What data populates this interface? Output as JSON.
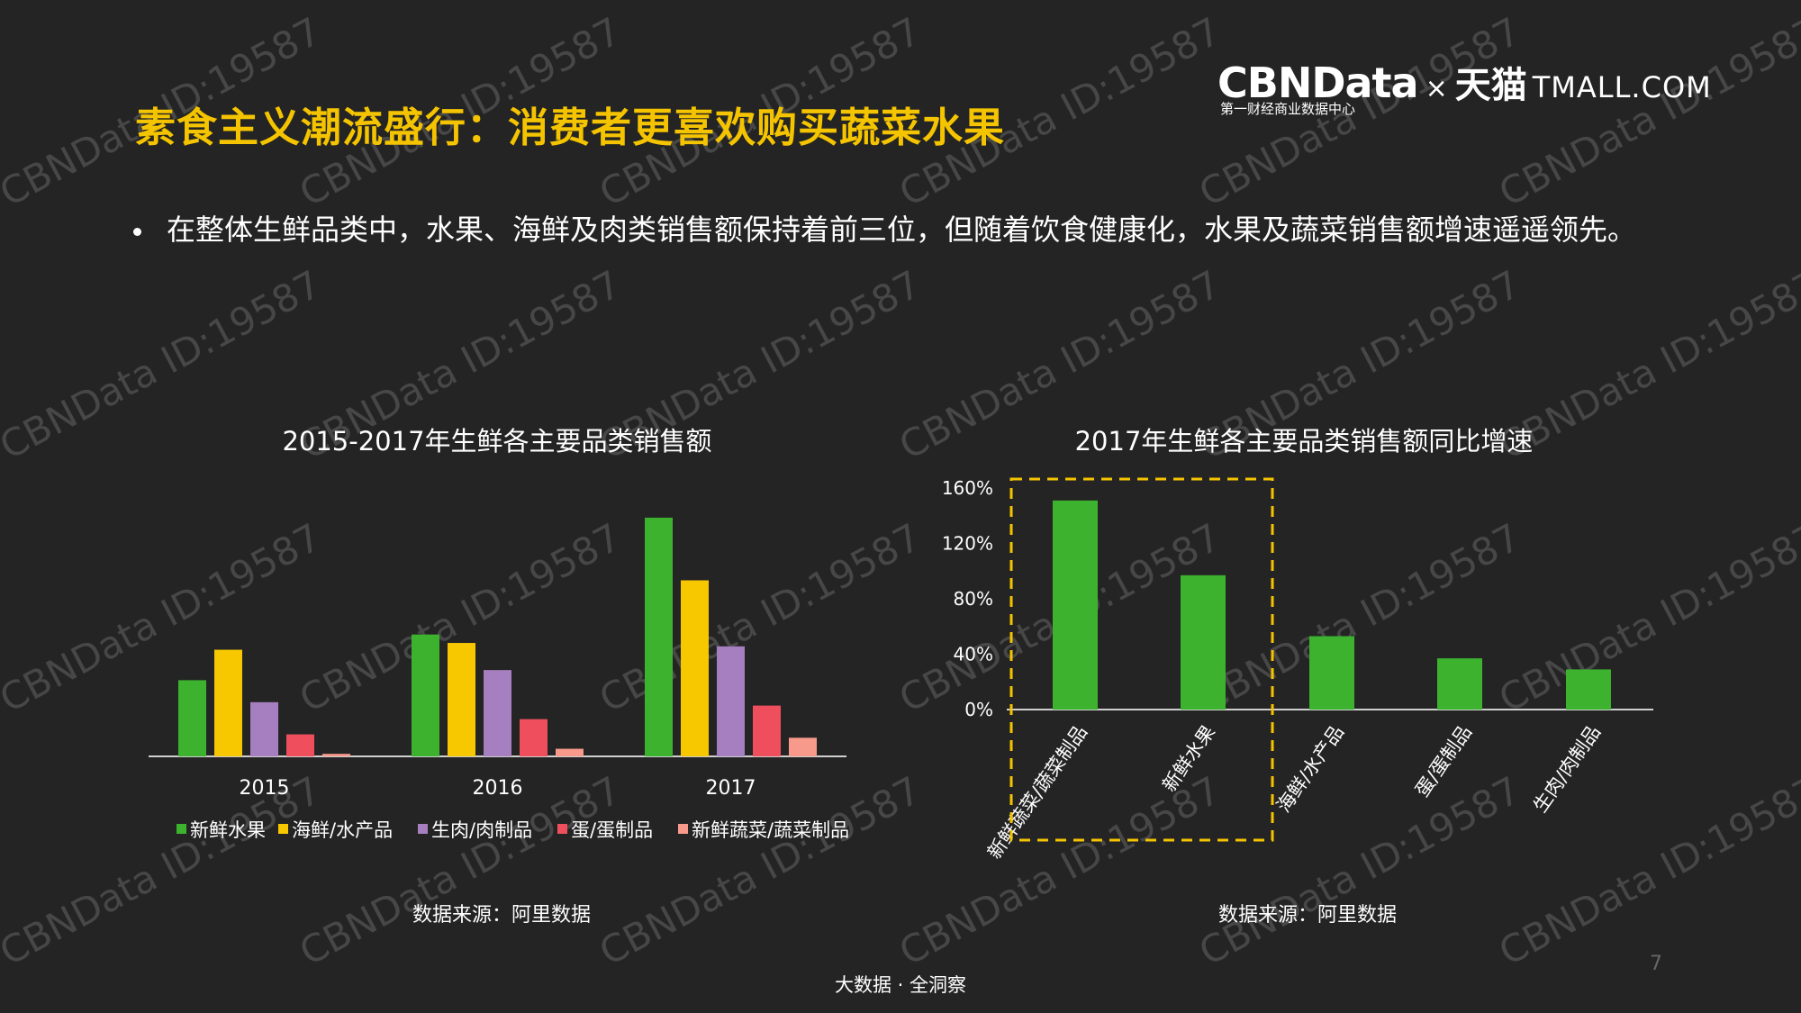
{
  "header": {
    "title": "素食主义潮流盛行：消费者更喜欢购买蔬菜水果",
    "logo_brand": "CBNData",
    "logo_times": "×",
    "logo_partner_cn": "天猫",
    "logo_partner_en": "TMALL.COM",
    "logo_subtitle": "第一财经商业数据中心"
  },
  "bullet_text": "在整体生鲜品类中，水果、海鲜及肉类销售额保持着前三位，但随着饮食健康化，水果及蔬菜销售额增速遥遥领先。",
  "watermark_text": "CBNData ID:19587",
  "colors": {
    "background": "#242424",
    "title": "#f5c400",
    "fruit": "#3cb22f",
    "seafood": "#f7c700",
    "meat": "#a67fc0",
    "egg": "#ef4f5d",
    "veg": "#f79a8c",
    "highlight_box": "#f5c400"
  },
  "chart_data": [
    {
      "type": "bar",
      "title": "2015-2017年生鲜各主要品类销售额",
      "categories": [
        "2015",
        "2016",
        "2017"
      ],
      "series": [
        {
          "name": "新鲜水果",
          "values": [
            45,
            72,
            141
          ]
        },
        {
          "name": "海鲜/水产品",
          "values": [
            63,
            67,
            104
          ]
        },
        {
          "name": "生肉/肉制品",
          "values": [
            32,
            51,
            65
          ]
        },
        {
          "name": "蛋/蛋制品",
          "values": [
            13,
            22,
            30
          ]
        },
        {
          "name": "新鲜蔬菜/蔬菜制品",
          "values": [
            1.5,
            4.5,
            11
          ]
        }
      ],
      "ylim": [
        0,
        150
      ],
      "axis_values_shown": false,
      "legend": "bottom",
      "source": "数据来源：阿里数据"
    },
    {
      "type": "bar",
      "title": "2017年生鲜各主要品类销售额同比增速",
      "categories": [
        "新鲜蔬菜/蔬菜制品",
        "新鲜水果",
        "海鲜/水产品",
        "蛋/蛋制品",
        "生肉/肉制品"
      ],
      "values": [
        151,
        97,
        53,
        37,
        29
      ],
      "unit": "%",
      "ylim": [
        0,
        160
      ],
      "y_ticks": [
        "0%",
        "40%",
        "80%",
        "120%",
        "160%"
      ],
      "highlighted_categories": [
        "新鲜蔬菜/蔬菜制品",
        "新鲜水果"
      ],
      "source": "数据来源：阿里数据"
    }
  ],
  "footer": "大数据 · 全洞察",
  "page_number": "7"
}
